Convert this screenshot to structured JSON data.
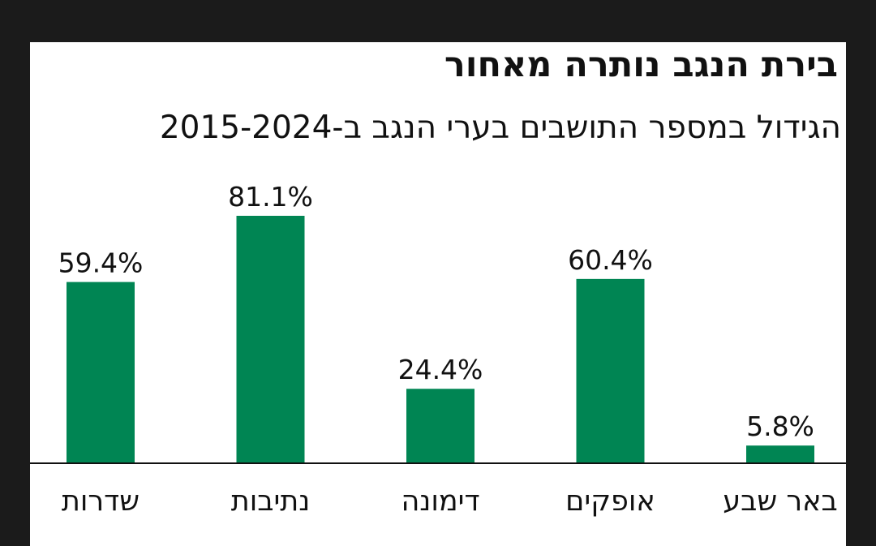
{
  "title": "בירת הנגב נותרה מאחור",
  "subtitle": "הגידול במספר התושבים בערי הנגב ב-2015-2024",
  "colors": {
    "bar": "#008553",
    "text": "#111111",
    "axis": "#111111",
    "background": "#ffffff"
  },
  "chart_data": {
    "type": "bar",
    "categories": [
      "שדרות",
      "נתיבות",
      "דימונה",
      "אופקים",
      "באר שבע"
    ],
    "values": [
      59.4,
      81.1,
      24.4,
      60.4,
      5.8
    ],
    "value_labels": [
      "59.4%",
      "81.1%",
      "24.4%",
      "60.4%",
      "5.8%"
    ],
    "title": "בירת הנגב נותרה מאחור",
    "subtitle": "הגידול במספר התושבים בערי הנגב ב-2015-2024",
    "xlabel": "",
    "ylabel": "",
    "ylim": [
      0,
      100
    ],
    "grid": false,
    "legend": "none"
  }
}
